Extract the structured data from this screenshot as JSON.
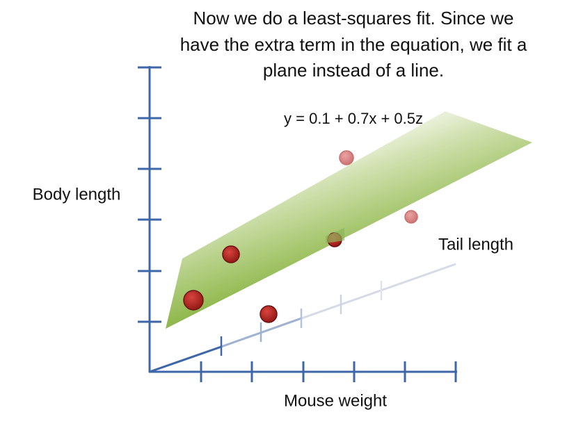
{
  "caption": {
    "lines": [
      "Now we do a least-squares fit. Since we",
      "have the extra term in the equation, we fit a",
      "plane instead of a line."
    ]
  },
  "equation": "y = 0.1 + 0.7x + 0.5z",
  "axes": {
    "vertical": "Body length",
    "horizontal": "Mouse weight",
    "depth": "Tail length"
  }
}
